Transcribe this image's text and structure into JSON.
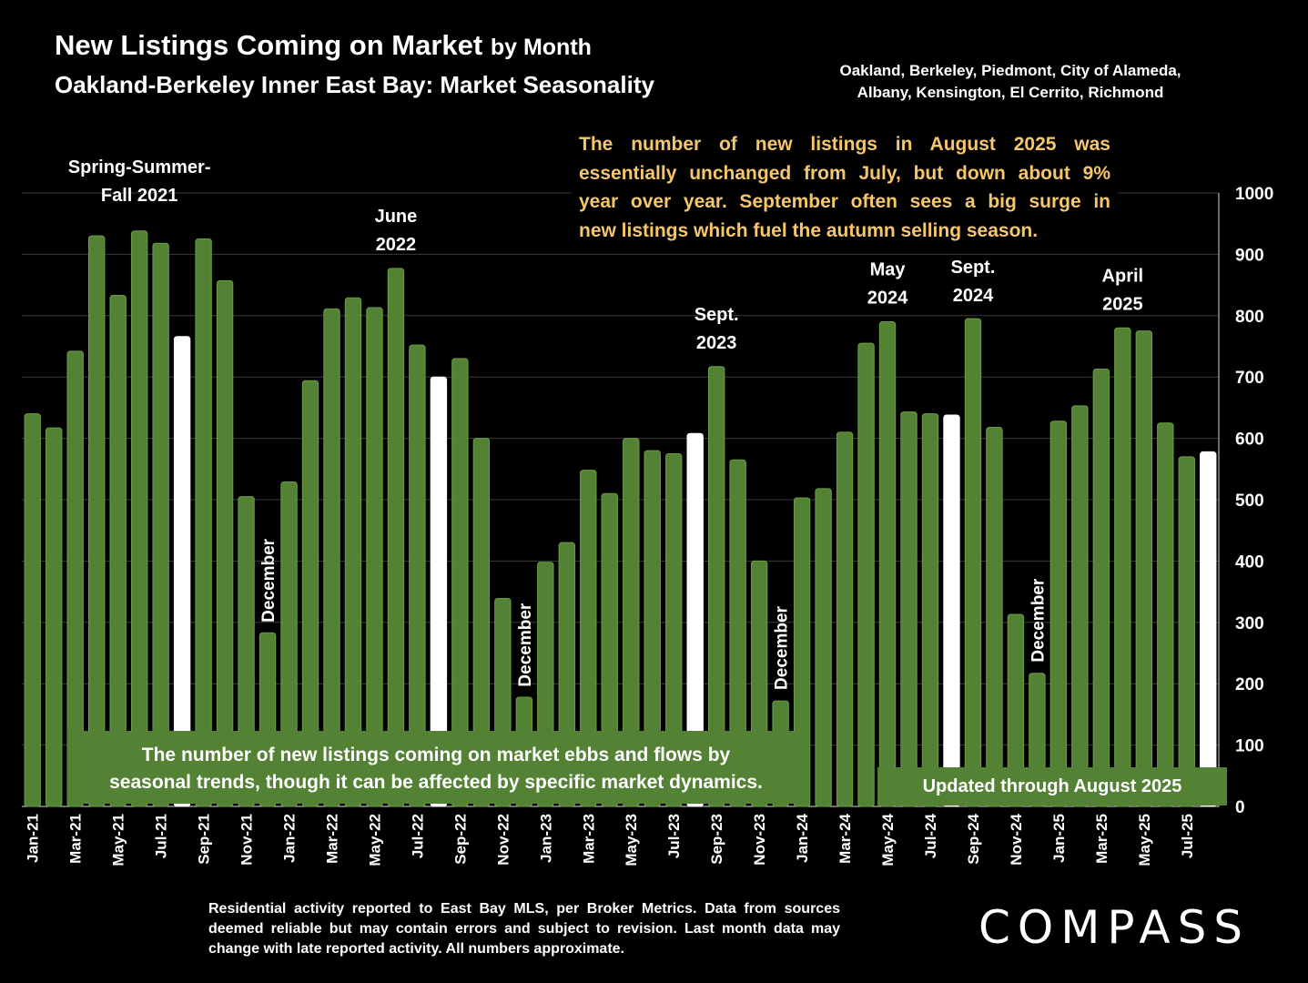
{
  "header": {
    "title_main": "New Listings Coming on Market",
    "title_suffix": "by Month",
    "subtitle": "Oakland-Berkeley Inner East Bay: Market Seasonality",
    "region_line1": "Oakland, Berkeley, Piedmont, City of Alameda,",
    "region_line2": "Albany, Kensington, El Cerrito, Richmond"
  },
  "callout": {
    "line1": "The number of new listings in August 2025 was",
    "line2": "essentially unchanged from July, but down about 9%",
    "line3": "year over year. September often sees a big surge in",
    "line4": "new listings which fuel the autumn selling season."
  },
  "note_box": {
    "line1": "The number of new listings coming on market ebbs and flows by",
    "line2": "seasonal trends, though it can be affected by specific market dynamics."
  },
  "updated_box": "Updated through August 2025",
  "footer": {
    "line1": "Residential activity reported to East Bay MLS, per Broker Metrics. Data from",
    "line2": "sources deemed reliable but may contain errors and subject to revision. Last month",
    "line3": "data may change with late reported activity. All numbers approximate."
  },
  "logo_text": "COMPASS",
  "colors": {
    "bar": "#548235",
    "highlight": "#ffffff",
    "callout_text": "#f6c76a",
    "background": "#000000"
  },
  "chart_data": {
    "type": "bar",
    "title": "New Listings Coming on Market by Month",
    "xlabel": "",
    "ylabel": "",
    "ylim": [
      0,
      1000
    ],
    "yticks": [
      0,
      100,
      200,
      300,
      400,
      500,
      600,
      700,
      800,
      900,
      1000
    ],
    "y_axis_side": "right",
    "grid": true,
    "categories": [
      "Jan-21",
      "Feb-21",
      "Mar-21",
      "Apr-21",
      "May-21",
      "Jun-21",
      "Jul-21",
      "Aug-21",
      "Sep-21",
      "Oct-21",
      "Nov-21",
      "Dec-21",
      "Jan-22",
      "Feb-22",
      "Mar-22",
      "Apr-22",
      "May-22",
      "Jun-22",
      "Jul-22",
      "Aug-22",
      "Sep-22",
      "Oct-22",
      "Nov-22",
      "Dec-22",
      "Jan-23",
      "Feb-23",
      "Mar-23",
      "Apr-23",
      "May-23",
      "Jun-23",
      "Jul-23",
      "Aug-23",
      "Sep-23",
      "Oct-23",
      "Nov-23",
      "Dec-23",
      "Jan-24",
      "Feb-24",
      "Mar-24",
      "Apr-24",
      "May-24",
      "Jun-24",
      "Jul-24",
      "Aug-24",
      "Sep-24",
      "Oct-24",
      "Nov-24",
      "Dec-24",
      "Jan-25",
      "Feb-25",
      "Mar-25",
      "Apr-25",
      "May-25",
      "Jun-25",
      "Jul-25",
      "Aug-25"
    ],
    "tick_labels": [
      "Jan-21",
      "Mar-21",
      "May-21",
      "Jul-21",
      "Sep-21",
      "Nov-21",
      "Jan-22",
      "Mar-22",
      "May-22",
      "Jul-22",
      "Sep-22",
      "Nov-22",
      "Jan-23",
      "Mar-23",
      "May-23",
      "Jul-23",
      "Sep-23",
      "Nov-23",
      "Jan-24",
      "Mar-24",
      "May-24",
      "Jul-24",
      "Sep-24",
      "Nov-24",
      "Jan-25",
      "Mar-25",
      "May-25",
      "Jul-25"
    ],
    "values": [
      640,
      617,
      742,
      930,
      833,
      938,
      918,
      766,
      925,
      857,
      505,
      283,
      529,
      694,
      811,
      829,
      813,
      877,
      752,
      700,
      730,
      600,
      339,
      178,
      398,
      430,
      548,
      510,
      600,
      580,
      575,
      608,
      717,
      565,
      400,
      172,
      503,
      518,
      610,
      755,
      790,
      643,
      640,
      638,
      795,
      618,
      313,
      217,
      628,
      653,
      713,
      780,
      775,
      625,
      570,
      578
    ],
    "highlighted": [
      "Aug-21",
      "Aug-22",
      "Aug-23",
      "Aug-24",
      "Aug-25"
    ],
    "annotations": [
      {
        "text": "Spring-Summer-",
        "text2": "Fall  2021",
        "category": "Jun-21",
        "value": 985
      },
      {
        "text": "June",
        "text2": "2022",
        "category": "Jun-22",
        "value": 905
      },
      {
        "text": "Sept.",
        "text2": "2023",
        "category": "Sep-23",
        "value": 745
      },
      {
        "text": "May",
        "text2": "2024",
        "category": "May-24",
        "value": 818
      },
      {
        "text": "Sept.",
        "text2": "2024",
        "category": "Sep-24",
        "value": 822
      },
      {
        "text": "April",
        "text2": "2025",
        "category": "Apr-25",
        "value": 808
      },
      {
        "text": "December",
        "category": "Dec-21",
        "rotated": true,
        "value": 300
      },
      {
        "text": "December",
        "category": "Dec-22",
        "rotated": true,
        "value": 195
      },
      {
        "text": "December",
        "category": "Dec-23",
        "rotated": true,
        "value": 190
      },
      {
        "text": "December",
        "category": "Dec-24",
        "rotated": true,
        "value": 235
      }
    ]
  }
}
